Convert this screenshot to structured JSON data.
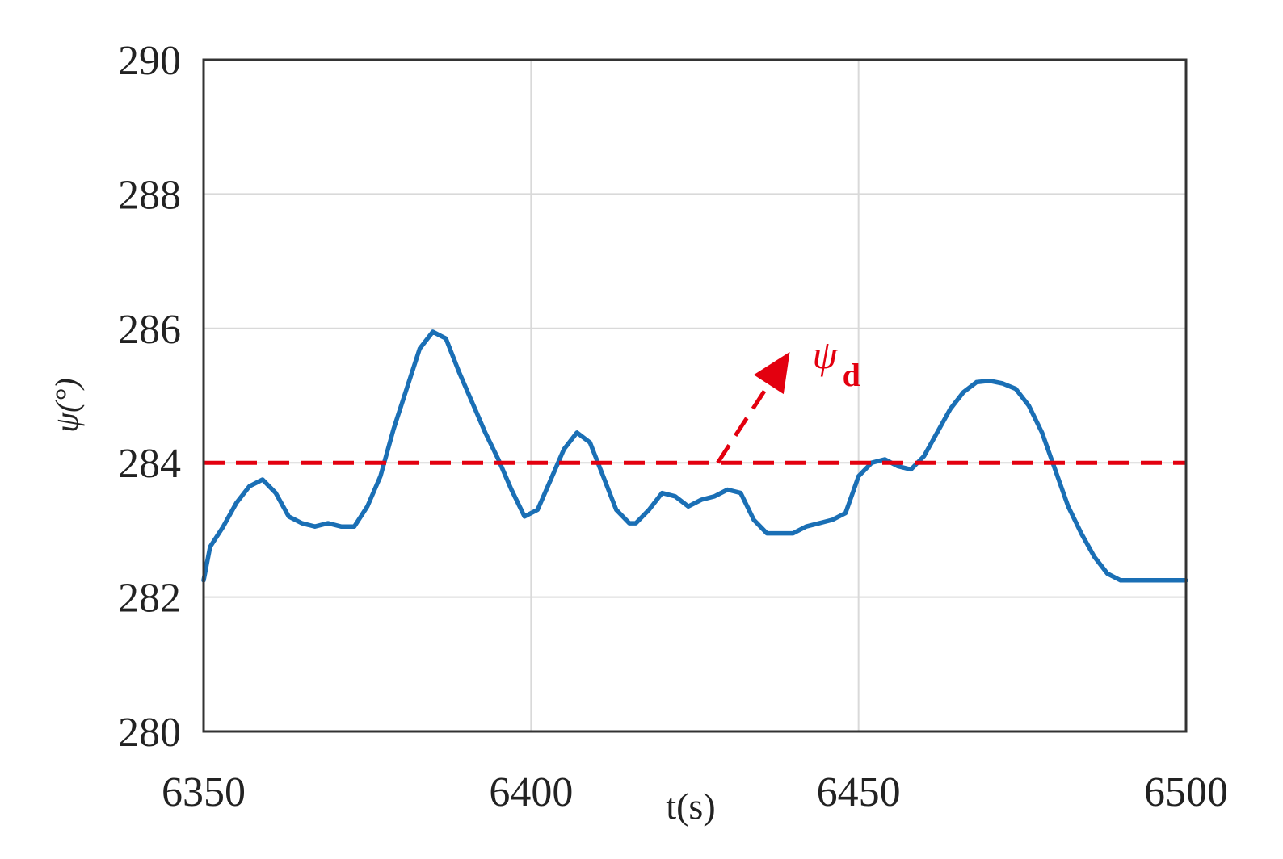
{
  "chart_data": {
    "type": "line",
    "xlabel": "t(s)",
    "ylabel": "ψ(°)",
    "xlim": [
      6350,
      6500
    ],
    "ylim": [
      280,
      290
    ],
    "xticks": [
      "6350",
      "6400",
      "6450",
      "6500"
    ],
    "yticks": [
      "280",
      "282",
      "284",
      "286",
      "288",
      "290"
    ],
    "grid": true,
    "colors": {
      "series": "#1a6fb5",
      "reference": "#e3000f",
      "grid": "#d9d9d9",
      "axis": "#333333"
    },
    "series": [
      {
        "style": "solid",
        "x": [
          6350,
          6351,
          6353,
          6355,
          6357,
          6359,
          6361,
          6363,
          6365,
          6367,
          6369,
          6371,
          6373,
          6375,
          6377,
          6379,
          6381,
          6383,
          6385,
          6387,
          6389,
          6391,
          6393,
          6395,
          6397,
          6399,
          6401,
          6403,
          6405,
          6407,
          6409,
          6411,
          6413,
          6415,
          6416,
          6418,
          6420,
          6422,
          6424,
          6426,
          6428,
          6430,
          6432,
          6434,
          6436,
          6438,
          6440,
          6442,
          6444,
          6446,
          6448,
          6450,
          6452,
          6454,
          6456,
          6458,
          6460,
          6462,
          6464,
          6466,
          6468,
          6470,
          6472,
          6474,
          6476,
          6478,
          6480,
          6482,
          6484,
          6486,
          6488,
          6490,
          6492,
          6494,
          6496,
          6498,
          6500
        ],
        "values": [
          282.25,
          282.75,
          283.05,
          283.4,
          283.65,
          283.75,
          283.55,
          283.2,
          283.1,
          283.05,
          283.1,
          283.05,
          283.05,
          283.35,
          283.8,
          284.5,
          285.1,
          285.7,
          285.95,
          285.85,
          285.35,
          284.9,
          284.45,
          284.05,
          283.6,
          283.2,
          283.3,
          283.75,
          284.2,
          284.45,
          284.3,
          283.8,
          283.3,
          283.1,
          283.1,
          283.3,
          283.55,
          283.5,
          283.35,
          283.45,
          283.5,
          283.6,
          283.55,
          283.15,
          282.95,
          282.95,
          282.95,
          283.05,
          283.1,
          283.15,
          283.25,
          283.8,
          284.0,
          284.05,
          283.95,
          283.9,
          284.1,
          284.45,
          284.8,
          285.05,
          285.2,
          285.22,
          285.18,
          285.1,
          284.85,
          284.45,
          283.9,
          283.35,
          282.95,
          282.6,
          282.35,
          282.25,
          282.25,
          282.25,
          282.25,
          282.25,
          282.25
        ]
      },
      {
        "style": "dashed",
        "x": [
          6350,
          6500
        ],
        "values": [
          284,
          284
        ]
      }
    ],
    "annotation": {
      "symbol": "ψ",
      "subscript": "d",
      "arrow_from": [
        6428.5,
        284
      ],
      "arrow_to": [
        6439.5,
        285.65
      ]
    }
  }
}
